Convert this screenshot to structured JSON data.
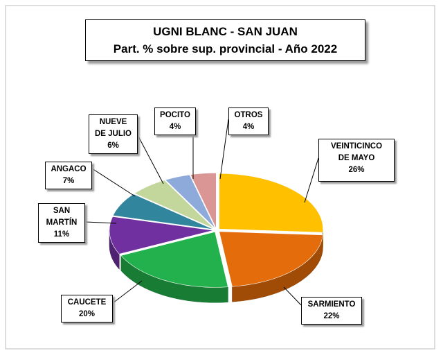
{
  "chart_data": {
    "type": "pie",
    "title": "UGNI BLANC - SAN JUAN",
    "subtitle": "Part. % sobre sup. provincial - Año 2022",
    "categories": [
      "VEINTICINCO\nDE MAYO",
      "SARMIENTO",
      "CAUCETE",
      "SAN\nMARTÍN",
      "ANGACO",
      "NUEVE\nDE JULIO",
      "POCITO",
      "OTROS"
    ],
    "values": [
      26,
      22,
      20,
      11,
      7,
      6,
      4,
      4
    ],
    "value_labels": [
      "26%",
      "22%",
      "20%",
      "11%",
      "7%",
      "6%",
      "4%",
      "4%"
    ],
    "colors": [
      "#ffc000",
      "#e46c0a",
      "#22b14c",
      "#7030a0",
      "#31859c",
      "#c3d69b",
      "#8eaadb",
      "#d99694"
    ]
  }
}
